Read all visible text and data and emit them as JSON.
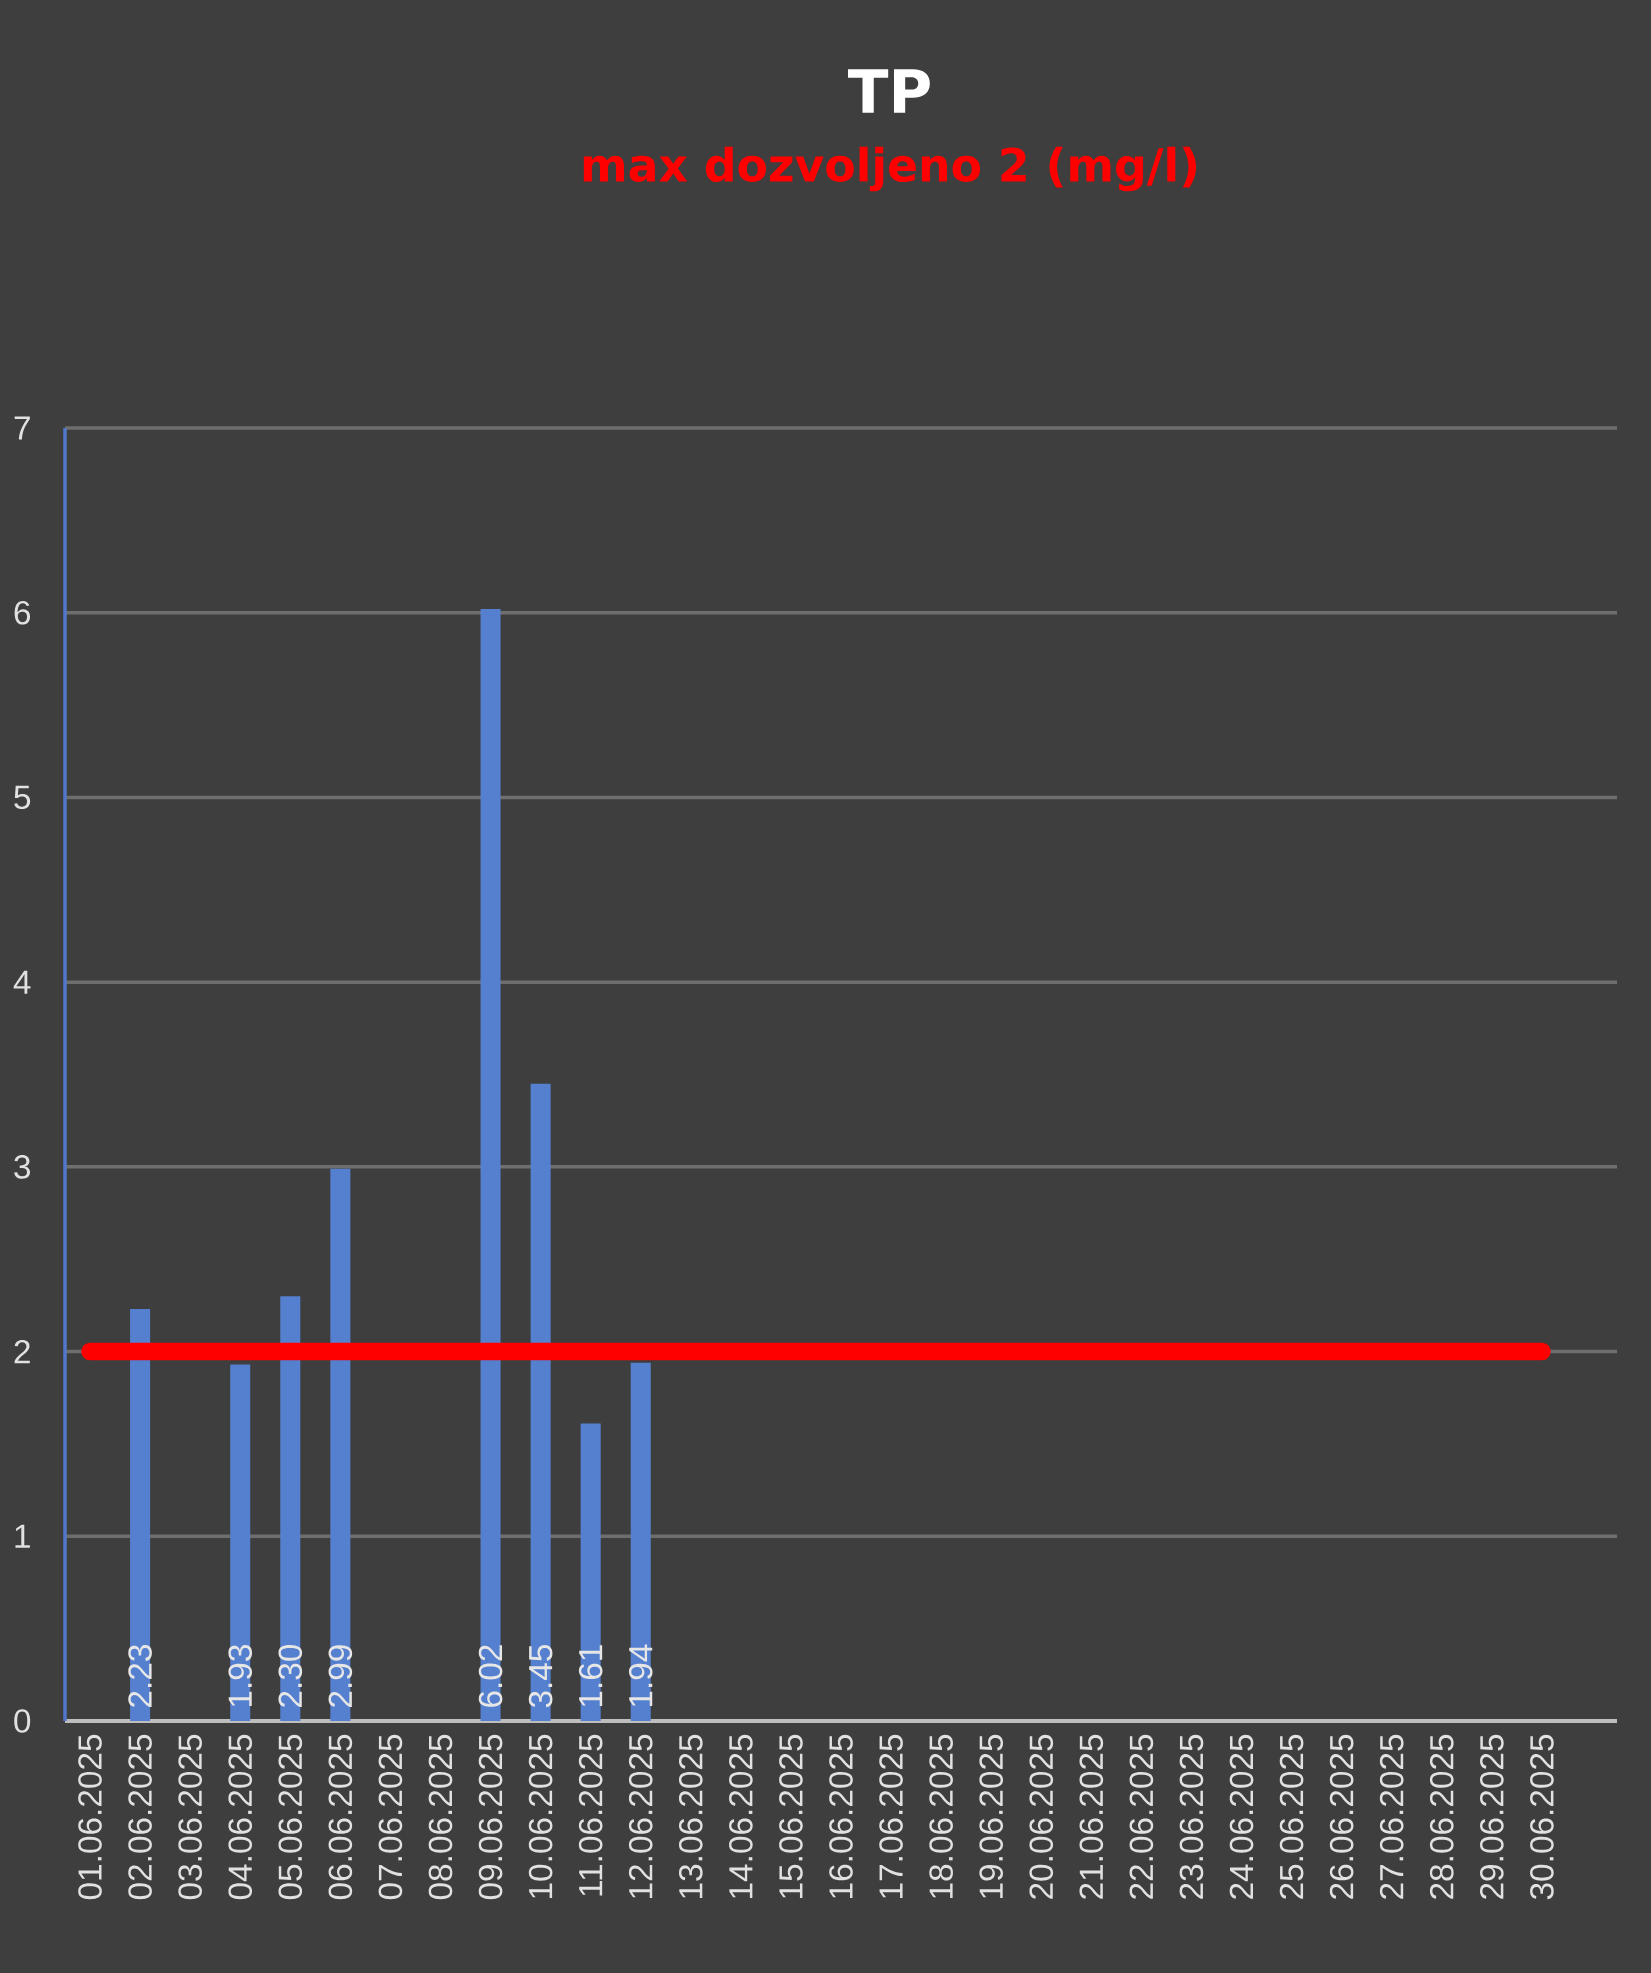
{
  "chart_data": {
    "type": "bar",
    "title": "TP",
    "subtitle": "max dozvoljeno 2 (mg/l)",
    "categories": [
      "01.06.2025",
      "02.06.2025",
      "03.06.2025",
      "04.06.2025",
      "05.06.2025",
      "06.06.2025",
      "07.06.2025",
      "08.06.2025",
      "09.06.2025",
      "10.06.2025",
      "11.06.2025",
      "12.06.2025",
      "13.06.2025",
      "14.06.2025",
      "15.06.2025",
      "16.06.2025",
      "17.06.2025",
      "18.06.2025",
      "19.06.2025",
      "20.06.2025",
      "21.06.2025",
      "22.06.2025",
      "23.06.2025",
      "24.06.2025",
      "25.06.2025",
      "26.06.2025",
      "27.06.2025",
      "28.06.2025",
      "29.06.2025",
      "30.06.2025",
      null
    ],
    "values": [
      null,
      2.23,
      null,
      1.93,
      2.3,
      2.99,
      null,
      null,
      6.02,
      3.45,
      1.61,
      1.94,
      null,
      null,
      null,
      null,
      null,
      null,
      null,
      null,
      null,
      null,
      null,
      null,
      null,
      null,
      null,
      null,
      null,
      null,
      null
    ],
    "value_labels": [
      null,
      "2.23",
      null,
      "1.93",
      "2.30",
      "2.99",
      null,
      null,
      "6.02",
      "3.45",
      "1.61",
      "1.94",
      null,
      null,
      null,
      null,
      null,
      null,
      null,
      null,
      null,
      null,
      null,
      null,
      null,
      null,
      null,
      null,
      null,
      null,
      null
    ],
    "color": "#5580d0",
    "ylim": [
      0,
      7
    ],
    "yticks": [
      0,
      1,
      2,
      3,
      4,
      5,
      6,
      7
    ],
    "grid": "y",
    "ref_lines": [
      {
        "axis": "y",
        "value": 2,
        "color": "#ff0000"
      }
    ]
  }
}
